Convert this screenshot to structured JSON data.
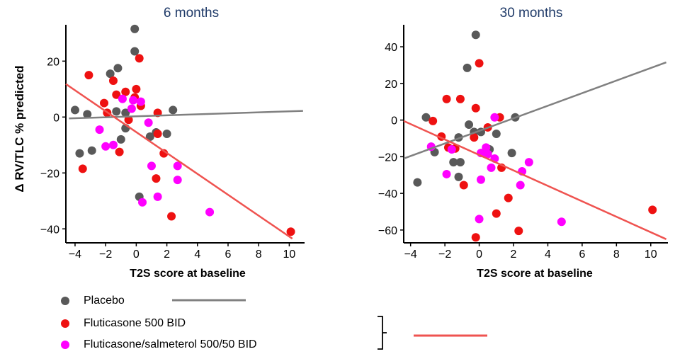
{
  "chart_data": [
    {
      "type": "scatter",
      "title": "6 months",
      "xlabel": "T2S score at baseline",
      "ylabel": "Δ RV/TLC % predicted",
      "xlim": [
        -4.6,
        11
      ],
      "ylim": [
        -45,
        33
      ],
      "xticks": [
        -4,
        -2,
        0,
        2,
        4,
        6,
        8,
        10
      ],
      "yticks": [
        20,
        0,
        -20,
        -40
      ],
      "series": [
        {
          "name": "Placebo",
          "color": "#595959",
          "points": [
            [
              -0.1,
              31.5
            ],
            [
              -0.1,
              23.5
            ],
            [
              -1.7,
              15.5
            ],
            [
              -1.2,
              17.5
            ],
            [
              -4,
              2.5
            ],
            [
              -3.2,
              1
            ],
            [
              -1.3,
              2
            ],
            [
              -0.7,
              1.5
            ],
            [
              2.4,
              2.5
            ],
            [
              -0.7,
              -4
            ],
            [
              -1,
              -8
            ],
            [
              -2.9,
              -12
            ],
            [
              -3.7,
              -13
            ],
            [
              0.9,
              -7
            ],
            [
              1.3,
              -5.5
            ],
            [
              2,
              -6
            ],
            [
              0.2,
              -28.5
            ]
          ]
        },
        {
          "name": "Fluticasone 500 BID",
          "color": "#ee1111",
          "points": [
            [
              -3.1,
              15
            ],
            [
              -1.5,
              13
            ],
            [
              0.2,
              21
            ],
            [
              0,
              10
            ],
            [
              -0.7,
              9
            ],
            [
              -1.3,
              8
            ],
            [
              -2.1,
              5
            ],
            [
              -1.9,
              1.5
            ],
            [
              -0.1,
              7
            ],
            [
              0.3,
              4
            ],
            [
              -0.5,
              -1
            ],
            [
              1.4,
              1.5
            ],
            [
              1.4,
              -6
            ],
            [
              1.8,
              -13
            ],
            [
              -1.1,
              -12.5
            ],
            [
              1.3,
              -22
            ],
            [
              2.3,
              -35.5
            ],
            [
              -3.5,
              -18.5
            ],
            [
              10.1,
              -41
            ]
          ]
        },
        {
          "name": "Fluticasone/salmeterol 500/50 BID",
          "color": "#ff00ff",
          "points": [
            [
              -0.9,
              6.5
            ],
            [
              -0.2,
              6
            ],
            [
              0.3,
              5.5
            ],
            [
              -0.3,
              3
            ],
            [
              -2.4,
              -4.5
            ],
            [
              -1.5,
              -10
            ],
            [
              -2,
              -10.5
            ],
            [
              0.8,
              -2
            ],
            [
              1,
              -17.5
            ],
            [
              2.7,
              -17.5
            ],
            [
              2.7,
              -22.5
            ],
            [
              1.4,
              -28.5
            ],
            [
              0.4,
              -30.5
            ],
            [
              4.8,
              -34
            ]
          ]
        }
      ],
      "lines": [
        {
          "series": "Placebo",
          "color": "#808080",
          "x": [
            -4.4,
            10.9
          ],
          "y": [
            -0.5,
            2.2
          ]
        },
        {
          "series": "Fluticasone",
          "color": "#ef5350",
          "x": [
            -4.6,
            10.2
          ],
          "y": [
            11.8,
            -43.5
          ]
        }
      ],
      "grid": false
    },
    {
      "type": "scatter",
      "title": "30 months",
      "xlabel": "T2S score at baseline",
      "ylabel": "",
      "xlim": [
        -4.4,
        11
      ],
      "ylim": [
        -67,
        52
      ],
      "xticks": [
        -4,
        -2,
        0,
        2,
        4,
        6,
        8,
        10
      ],
      "yticks": [
        40,
        20,
        0,
        -20,
        -40,
        -60
      ],
      "series": [
        {
          "name": "Placebo",
          "color": "#595959",
          "points": [
            [
              -0.2,
              46.5
            ],
            [
              -0.7,
              28.5
            ],
            [
              -3.1,
              1.5
            ],
            [
              -1.2,
              -9.5
            ],
            [
              -2.6,
              -17.5
            ],
            [
              -0.3,
              -6.5
            ],
            [
              -0.6,
              -2.5
            ],
            [
              0.1,
              -6.5
            ],
            [
              0.6,
              -16
            ],
            [
              1,
              -7.5
            ],
            [
              1.9,
              -18
            ],
            [
              2.1,
              1.5
            ],
            [
              -1.5,
              -23
            ],
            [
              -1.1,
              -23
            ],
            [
              -1.2,
              -31
            ],
            [
              -3.6,
              -34
            ]
          ]
        },
        {
          "name": "Fluticasone 500 BID",
          "color": "#ee1111",
          "points": [
            [
              0,
              31
            ],
            [
              -1.9,
              11.5
            ],
            [
              -1.1,
              11.5
            ],
            [
              -0.2,
              6.5
            ],
            [
              -2.7,
              -0.5
            ],
            [
              0.5,
              -4
            ],
            [
              -2.2,
              -9
            ],
            [
              -0.3,
              -9.5
            ],
            [
              1.2,
              1.5
            ],
            [
              -1.4,
              -15.5
            ],
            [
              1.3,
              -26
            ],
            [
              -1.8,
              -15
            ],
            [
              -0.9,
              -35.5
            ],
            [
              1.7,
              -42.5
            ],
            [
              1,
              -51
            ],
            [
              2.3,
              -60.5
            ],
            [
              -0.2,
              -64
            ],
            [
              10.1,
              -49
            ]
          ]
        },
        {
          "name": "Fluticasone/salmeterol 500/50 BID",
          "color": "#ff00ff",
          "points": [
            [
              0.9,
              1.5
            ],
            [
              -2.8,
              -14.5
            ],
            [
              -1.6,
              -16
            ],
            [
              0.1,
              -18
            ],
            [
              0.4,
              -15
            ],
            [
              0.9,
              -21
            ],
            [
              0.5,
              -18.5
            ],
            [
              2.9,
              -23
            ],
            [
              2.5,
              -28
            ],
            [
              0.7,
              -26
            ],
            [
              -1.9,
              -29.5
            ],
            [
              0.1,
              -32.5
            ],
            [
              2.4,
              -35.5
            ],
            [
              0,
              -54
            ],
            [
              4.8,
              -55.5
            ]
          ]
        }
      ],
      "lines": [
        {
          "series": "Placebo",
          "color": "#808080",
          "x": [
            -4.4,
            10.9
          ],
          "y": [
            -21,
            31.5
          ]
        },
        {
          "series": "Fluticasone",
          "color": "#ef5350",
          "x": [
            -4.4,
            10.9
          ],
          "y": [
            -0.5,
            -65
          ]
        }
      ],
      "grid": false
    }
  ],
  "legend": {
    "items": [
      {
        "label": "Placebo",
        "color": "#595959"
      },
      {
        "label": "Fluticasone 500 BID",
        "color": "#ee1111"
      },
      {
        "label": "Fluticasone/salmeterol 500/50 BID",
        "color": "#ff00ff"
      }
    ],
    "placebo_line_color": "#808080",
    "fluticasone_line_color": "#ef5350"
  }
}
